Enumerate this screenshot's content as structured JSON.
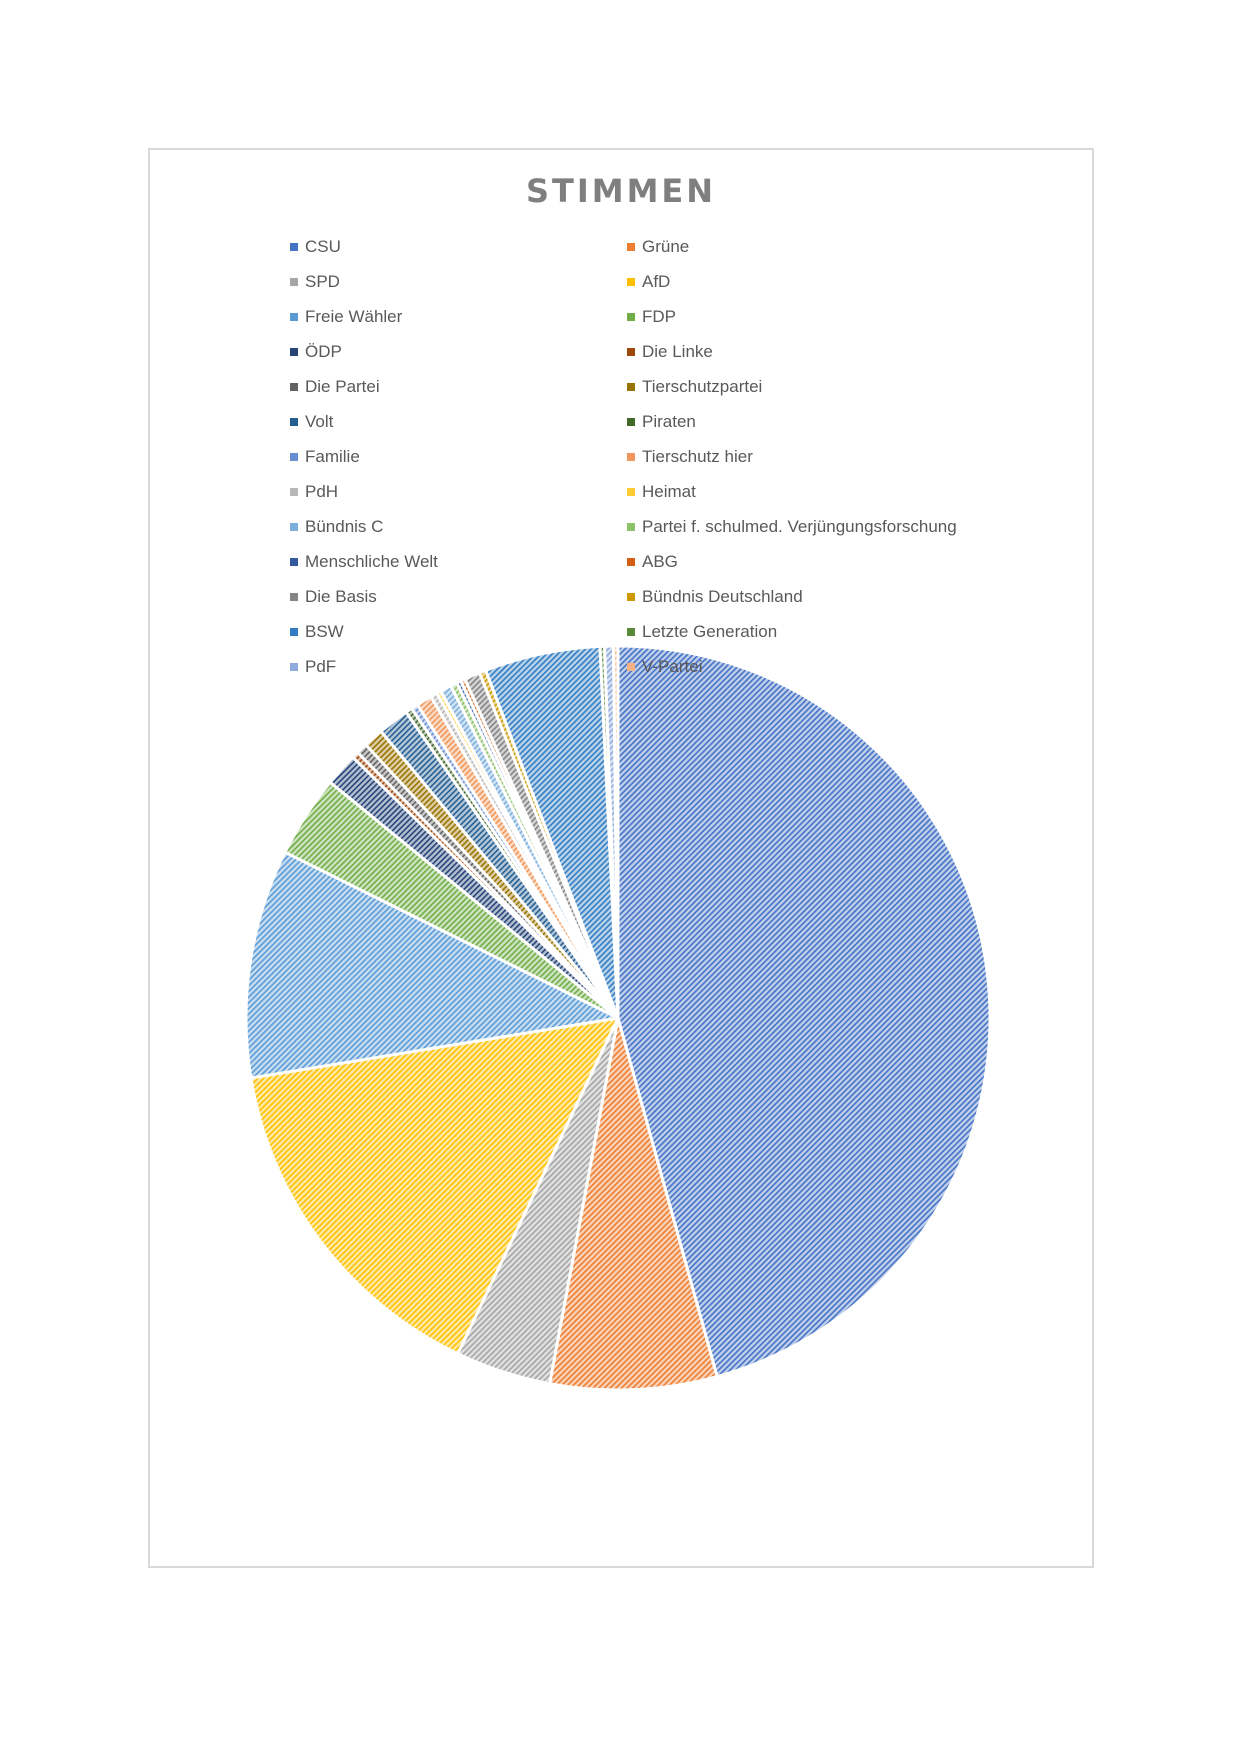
{
  "chart_data": {
    "type": "pie",
    "title": "STIMMEN",
    "legend_position": "top",
    "categories": [
      "CSU",
      "Grüne",
      "SPD",
      "AfD",
      "Freie Wähler",
      "FDP",
      "ÖDP",
      "Die Linke",
      "Die Partei",
      "Tierschutzpartei",
      "Volt",
      "Piraten",
      "Familie",
      "Tierschutz hier",
      "PdH",
      "Heimat",
      "Bündnis C",
      "Partei f. schulmed. Verjüngungsforschung",
      "Menschliche Welt",
      "ABG",
      "Die Basis",
      "Bündnis Deutschland",
      "BSW",
      "Letzte Generation",
      "PdF",
      "V-Partei"
    ],
    "values": [
      47.4,
      7.5,
      4.3,
      15.9,
      10.3,
      3.7,
      1.5,
      0.3,
      0.5,
      0.9,
      1.4,
      0.3,
      0.3,
      0.7,
      0.3,
      0.2,
      0.5,
      0.3,
      0.2,
      0.2,
      0.7,
      0.3,
      5.2,
      0.2,
      0.4,
      0.2
    ],
    "colors": [
      "#4472c4",
      "#ed7d31",
      "#a5a5a5",
      "#ffc000",
      "#5b9bd5",
      "#70ad47",
      "#264478",
      "#9e480e",
      "#636363",
      "#997300",
      "#255e91",
      "#43682b",
      "#698ed0",
      "#f1975a",
      "#b7b7b7",
      "#ffcd33",
      "#7cafdd",
      "#8cc168",
      "#335aa1",
      "#d26012",
      "#848484",
      "#cc9a00",
      "#327dc2",
      "#5a8a39",
      "#8faadc",
      "#f4b183"
    ]
  }
}
